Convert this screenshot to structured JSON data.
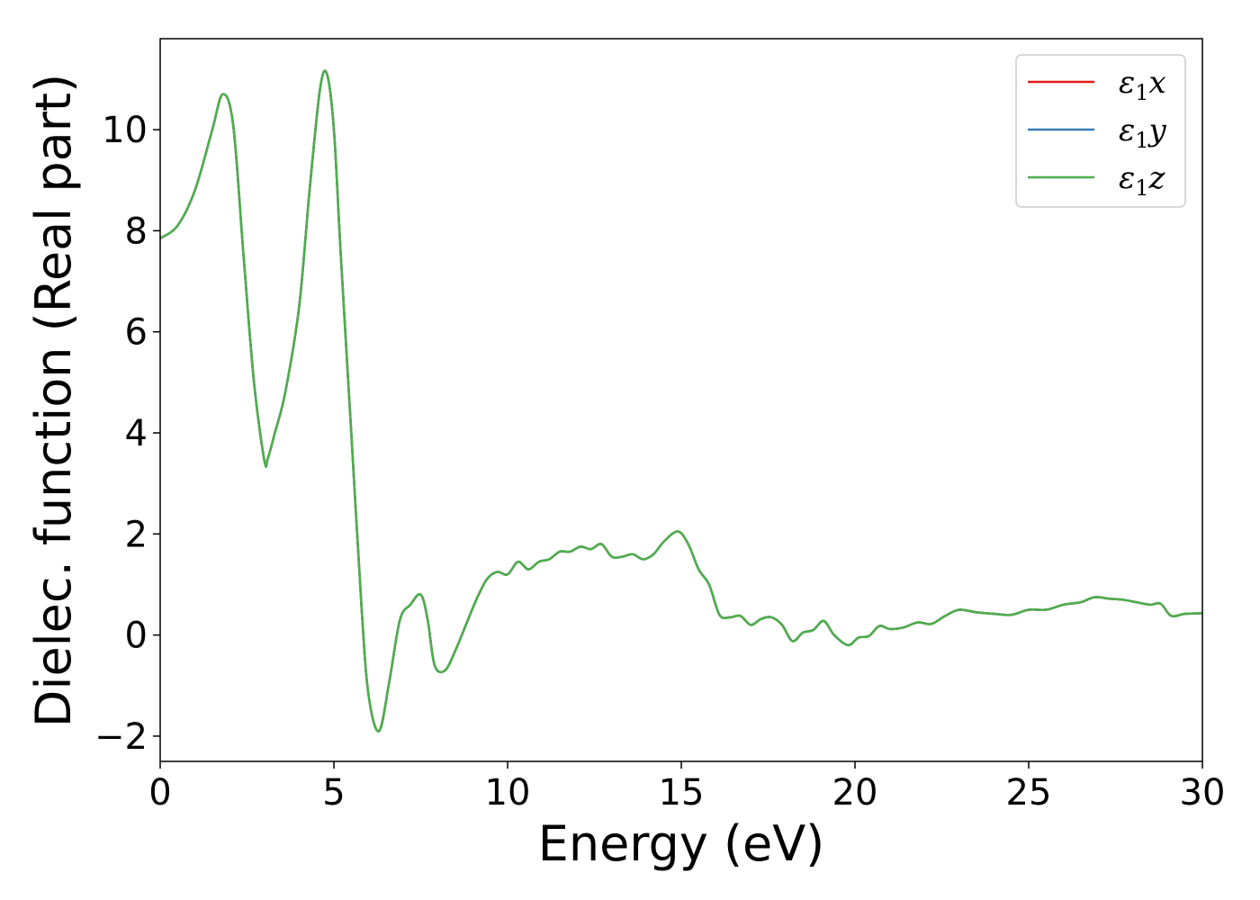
{
  "chart_data": {
    "type": "line",
    "xlabel": "Energy (eV)",
    "ylabel": "Dielec. function (Real part)",
    "xlim": [
      0,
      30
    ],
    "ylim": [
      -2.5,
      11.8
    ],
    "xticks": [
      0,
      5,
      10,
      15,
      20,
      25,
      30
    ],
    "xtick_labels": [
      "0",
      "5",
      "10",
      "15",
      "20",
      "25",
      "30"
    ],
    "yticks": [
      -2,
      0,
      2,
      4,
      6,
      8,
      10
    ],
    "ytick_labels": [
      "−2",
      "0",
      "2",
      "4",
      "6",
      "8",
      "10"
    ],
    "grid": false,
    "legend_position": "top-right",
    "x": [
      0,
      0.5,
      1.0,
      1.5,
      1.8,
      2.1,
      2.4,
      2.7,
      3.0,
      3.1,
      3.3,
      3.6,
      4.0,
      4.3,
      4.6,
      4.8,
      5.0,
      5.2,
      5.5,
      5.8,
      6.0,
      6.3,
      6.6,
      6.9,
      7.2,
      7.5,
      7.7,
      7.9,
      8.2,
      8.5,
      8.8,
      9.1,
      9.4,
      9.7,
      10.0,
      10.3,
      10.6,
      10.9,
      11.2,
      11.5,
      11.8,
      12.1,
      12.4,
      12.7,
      13.0,
      13.3,
      13.6,
      13.9,
      14.2,
      14.5,
      14.9,
      15.2,
      15.5,
      15.8,
      16.1,
      16.4,
      16.7,
      17.0,
      17.3,
      17.6,
      17.9,
      18.2,
      18.5,
      18.8,
      19.1,
      19.4,
      19.8,
      20.1,
      20.4,
      20.7,
      21.0,
      21.4,
      21.8,
      22.2,
      22.6,
      23.0,
      23.5,
      24.0,
      24.5,
      25.0,
      25.5,
      26.0,
      26.5,
      26.9,
      27.3,
      27.7,
      28.1,
      28.5,
      28.8,
      29.1,
      29.5,
      30.0
    ],
    "series": [
      {
        "name": "x",
        "color": "#e41a1c",
        "values": [
          7.85,
          8.1,
          8.8,
          10.0,
          10.7,
          10.1,
          7.5,
          5.0,
          3.45,
          3.5,
          4.0,
          4.8,
          6.5,
          8.8,
          10.8,
          11.1,
          10.0,
          7.5,
          4.0,
          0.5,
          -1.2,
          -1.9,
          -0.9,
          0.3,
          0.6,
          0.8,
          0.3,
          -0.6,
          -0.7,
          -0.3,
          0.2,
          0.7,
          1.1,
          1.25,
          1.2,
          1.45,
          1.3,
          1.45,
          1.5,
          1.65,
          1.65,
          1.75,
          1.7,
          1.8,
          1.55,
          1.55,
          1.6,
          1.5,
          1.6,
          1.85,
          2.05,
          1.8,
          1.3,
          1.0,
          0.4,
          0.35,
          0.38,
          0.2,
          0.32,
          0.35,
          0.2,
          -0.12,
          0.05,
          0.1,
          0.28,
          0.0,
          -0.2,
          -0.05,
          -0.02,
          0.18,
          0.12,
          0.15,
          0.25,
          0.22,
          0.38,
          0.5,
          0.45,
          0.42,
          0.4,
          0.5,
          0.5,
          0.6,
          0.65,
          0.75,
          0.72,
          0.7,
          0.65,
          0.6,
          0.62,
          0.38,
          0.42,
          0.43
        ]
      },
      {
        "name": "y",
        "color": "#377eb8",
        "values": [
          7.85,
          8.1,
          8.8,
          10.0,
          10.7,
          10.1,
          7.5,
          5.0,
          3.45,
          3.5,
          4.0,
          4.8,
          6.5,
          8.8,
          10.8,
          11.1,
          10.0,
          7.5,
          4.0,
          0.5,
          -1.2,
          -1.9,
          -0.9,
          0.3,
          0.6,
          0.8,
          0.3,
          -0.6,
          -0.7,
          -0.3,
          0.2,
          0.7,
          1.1,
          1.25,
          1.2,
          1.45,
          1.3,
          1.45,
          1.5,
          1.65,
          1.65,
          1.75,
          1.7,
          1.8,
          1.55,
          1.55,
          1.6,
          1.5,
          1.6,
          1.85,
          2.05,
          1.8,
          1.3,
          1.0,
          0.4,
          0.35,
          0.38,
          0.2,
          0.32,
          0.35,
          0.2,
          -0.12,
          0.05,
          0.1,
          0.28,
          0.0,
          -0.2,
          -0.05,
          -0.02,
          0.18,
          0.12,
          0.15,
          0.25,
          0.22,
          0.38,
          0.5,
          0.45,
          0.42,
          0.4,
          0.5,
          0.5,
          0.6,
          0.65,
          0.75,
          0.72,
          0.7,
          0.65,
          0.6,
          0.62,
          0.38,
          0.42,
          0.43
        ]
      },
      {
        "name": "z",
        "color": "#4daf4a",
        "values": [
          7.85,
          8.1,
          8.8,
          10.0,
          10.7,
          10.1,
          7.5,
          5.0,
          3.45,
          3.5,
          4.0,
          4.8,
          6.5,
          8.8,
          10.8,
          11.1,
          10.0,
          7.5,
          4.0,
          0.5,
          -1.2,
          -1.9,
          -0.9,
          0.3,
          0.6,
          0.8,
          0.3,
          -0.6,
          -0.7,
          -0.3,
          0.2,
          0.7,
          1.1,
          1.25,
          1.2,
          1.45,
          1.3,
          1.45,
          1.5,
          1.65,
          1.65,
          1.75,
          1.7,
          1.8,
          1.55,
          1.55,
          1.6,
          1.5,
          1.6,
          1.85,
          2.05,
          1.8,
          1.3,
          1.0,
          0.4,
          0.35,
          0.38,
          0.2,
          0.32,
          0.35,
          0.2,
          -0.12,
          0.05,
          0.1,
          0.28,
          0.0,
          -0.2,
          -0.05,
          -0.02,
          0.18,
          0.12,
          0.15,
          0.25,
          0.22,
          0.38,
          0.5,
          0.45,
          0.42,
          0.4,
          0.5,
          0.5,
          0.6,
          0.65,
          0.75,
          0.72,
          0.7,
          0.65,
          0.6,
          0.62,
          0.38,
          0.42,
          0.43
        ]
      }
    ],
    "legend": [
      {
        "symbol": "ε",
        "sub": "1",
        "suffix": "x",
        "color": "#e41a1c"
      },
      {
        "symbol": "ε",
        "sub": "1",
        "suffix": "y",
        "color": "#377eb8"
      },
      {
        "symbol": "ε",
        "sub": "1",
        "suffix": "z",
        "color": "#4daf4a"
      }
    ]
  }
}
